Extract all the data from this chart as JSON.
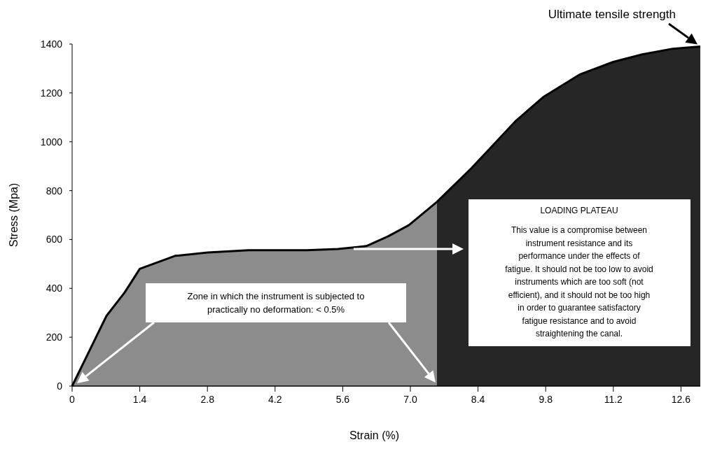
{
  "chart_data": {
    "type": "area",
    "xlabel": "Strain (%)",
    "ylabel": "Stress (Mpa)",
    "series": [
      {
        "color": "#8c8c8c",
        "x": [
          0,
          0.71,
          1.09,
          1.4,
          2.13,
          2.81,
          3.65,
          4.86,
          5.5,
          6.09,
          6.54,
          6.97,
          7.55
        ],
        "values": [
          0,
          287,
          384,
          480,
          533,
          547,
          556,
          556,
          561,
          573,
          613,
          659,
          754
        ]
      },
      {
        "color": "#262626",
        "x": [
          7.55,
          8.26,
          9.17,
          9.75,
          10.5,
          11.2,
          11.8,
          12.43,
          13.0
        ],
        "values": [
          754,
          891,
          1083,
          1183,
          1275,
          1327,
          1358,
          1381,
          1390
        ]
      }
    ],
    "xlim": [
      0,
      13
    ],
    "ylim": [
      0,
      1400
    ],
    "xticks": [
      0,
      1.4,
      2.8,
      4.2,
      5.6,
      {
        "value": 7,
        "label": "7.0"
      },
      8.4,
      9.8,
      11.2,
      12.6
    ],
    "yticks": [
      0,
      200,
      400,
      600,
      800,
      1000,
      1200,
      1400
    ],
    "annotations": [
      "Zone in which the instrument is subjected to\npractically no deformation: < 0.5%",
      "LOADING PLATEAU",
      "This value is a compromise between\ninstrument resistance and its\nperformance under the effects of\nfatigue. It should not be too low to avoid\ninstruments which are too soft (not\nefficient), and it should not be too high\nin order to guarantee satisfactory\nfatigue resistance and to avoid\nstraightening the canal.",
      {
        "text": "Ultimate tensile strength",
        "x": 13.0,
        "y": 1390
      }
    ]
  }
}
